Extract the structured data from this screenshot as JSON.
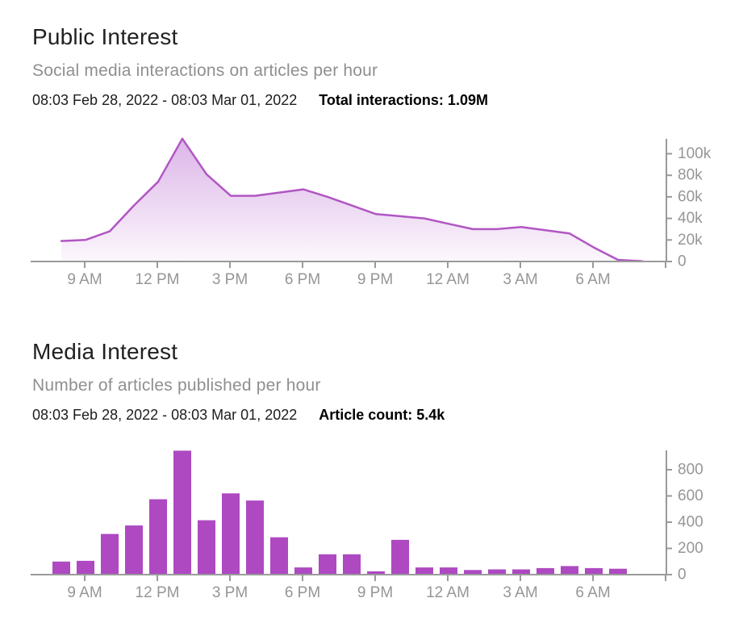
{
  "public_interest": {
    "title": "Public Interest",
    "subtitle": "Social media interactions on articles per hour",
    "date_range": "08:03 Feb 28, 2022 - 08:03 Mar 01, 2022",
    "total_label": "Total interactions: 1.09M"
  },
  "media_interest": {
    "title": "Media Interest",
    "subtitle": "Number of articles published per hour",
    "date_range": "08:03 Feb 28, 2022 - 08:03 Mar 01, 2022",
    "total_label": "Article count: 5.4k"
  },
  "chart_data": [
    {
      "type": "area",
      "title": "Public Interest",
      "subtitle": "Social media interactions on articles per hour",
      "xlabel": "",
      "ylabel": "",
      "grid": false,
      "legend": "none",
      "y_axis_side": "right",
      "categories": [
        "8 AM",
        "9 AM",
        "10 AM",
        "11 AM",
        "12 PM",
        "1 PM",
        "2 PM",
        "3 PM",
        "4 PM",
        "5 PM",
        "6 PM",
        "7 PM",
        "8 PM",
        "9 PM",
        "10 PM",
        "11 PM",
        "12 AM",
        "1 AM",
        "2 AM",
        "3 AM",
        "4 AM",
        "5 AM",
        "6 AM",
        "7 AM",
        "8 AM"
      ],
      "values": [
        19000,
        20000,
        28000,
        52000,
        74000,
        114000,
        81000,
        61000,
        61000,
        64000,
        67000,
        60000,
        52000,
        44000,
        42000,
        40000,
        35000,
        30000,
        30000,
        32000,
        29000,
        26000,
        13000,
        1500,
        300
      ],
      "x_tick_labels": [
        "9 AM",
        "12 PM",
        "3 PM",
        "6 PM",
        "9 PM",
        "12 AM",
        "3 AM",
        "6 AM"
      ],
      "y_ticks": {
        "values": [
          0,
          20000,
          40000,
          60000,
          80000,
          100000
        ],
        "labels": [
          "0",
          "20k",
          "40k",
          "60k",
          "80k",
          "100k"
        ]
      },
      "ylim": [
        0,
        114000
      ],
      "colors": {
        "line": "#b156c3",
        "fill_top": "#dcb5e8",
        "fill_bottom": "#fcf7fd",
        "axis": "#9a9a9a",
        "tick_label": "#969696"
      }
    },
    {
      "type": "bar",
      "title": "Media Interest",
      "subtitle": "Number of articles published per hour",
      "xlabel": "",
      "ylabel": "",
      "grid": false,
      "legend": "none",
      "y_axis_side": "right",
      "categories": [
        "8 AM",
        "9 AM",
        "10 AM",
        "11 AM",
        "12 PM",
        "1 PM",
        "2 PM",
        "3 PM",
        "4 PM",
        "5 PM",
        "6 PM",
        "7 PM",
        "8 PM",
        "9 PM",
        "10 PM",
        "11 PM",
        "12 AM",
        "1 AM",
        "2 AM",
        "3 AM",
        "4 AM",
        "5 AM",
        "6 AM",
        "7 AM"
      ],
      "values": [
        100,
        105,
        310,
        375,
        575,
        945,
        415,
        620,
        565,
        285,
        55,
        155,
        155,
        25,
        265,
        55,
        55,
        35,
        40,
        40,
        50,
        65,
        50,
        45
      ],
      "x_tick_labels": [
        "9 AM",
        "12 PM",
        "3 PM",
        "6 PM",
        "9 PM",
        "12 AM",
        "3 AM",
        "6 AM"
      ],
      "y_ticks": {
        "values": [
          0,
          200,
          400,
          600,
          800
        ],
        "labels": [
          "0",
          "200",
          "400",
          "600",
          "800"
        ]
      },
      "ylim": [
        0,
        950
      ],
      "colors": {
        "bar": "#ae49c2",
        "axis": "#9a9a9a",
        "tick_label": "#969696"
      }
    }
  ]
}
